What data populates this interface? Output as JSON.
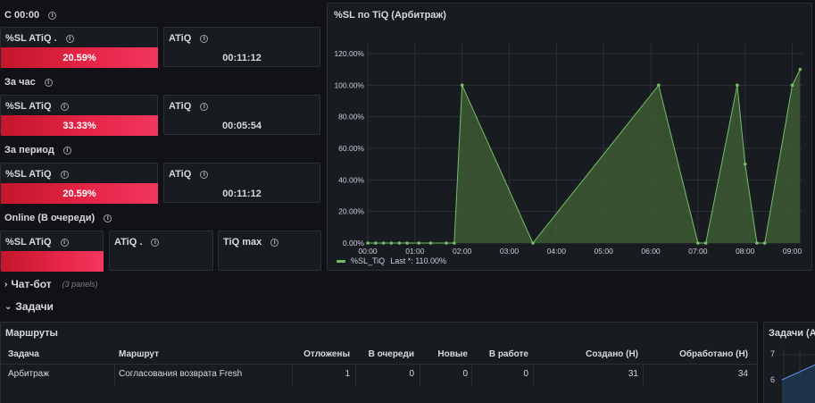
{
  "rows": [
    {
      "title": "С 00:00"
    },
    {
      "title": "За час"
    },
    {
      "title": "За период"
    },
    {
      "title": "Online (В очереди)"
    }
  ],
  "gauges": [
    {
      "title": "%SL ATiQ .",
      "value": "20.59%",
      "fraction": 0.2059
    },
    {
      "title": "%SL ATiQ",
      "value": "33.33%",
      "fraction": 0.3333
    },
    {
      "title": "%SL ATiQ",
      "value": "20.59%",
      "fraction": 0.2059
    },
    {
      "title": "%SL ATiQ",
      "value": "",
      "fraction": 1.0
    }
  ],
  "stats": [
    {
      "title": "ATiQ",
      "value": "00:11:12"
    },
    {
      "title": "ATiQ",
      "value": "00:05:54"
    },
    {
      "title": "ATiQ",
      "value": "00:11:12"
    },
    {
      "title": "ATiQ .",
      "value": ""
    },
    {
      "title": "TiQ max",
      "value": ""
    }
  ],
  "colors": {
    "bar": "#e8254a",
    "line": "#73bf69",
    "fill": "#3d5a34",
    "background": "#111217",
    "panel": "#181b1f"
  },
  "chart": {
    "title": "%SL по TiQ (Арбитраж)",
    "legend": {
      "name": "%SL_TiQ",
      "stat": "Last *: 110.00%"
    }
  },
  "chart_data": {
    "type": "area",
    "title": "%SL по TiQ (Арбитраж)",
    "xlabel": "",
    "ylabel": "",
    "ylim": [
      0,
      1.2
    ],
    "y_ticks": [
      "0.00%",
      "20.00%",
      "40.00%",
      "60.00%",
      "80.00%",
      "100.00%",
      "120.00%"
    ],
    "x_ticks": [
      "00:00",
      "01:00",
      "02:00",
      "03:00",
      "04:00",
      "05:00",
      "06:00",
      "07:00",
      "08:00",
      "09:00"
    ],
    "grid": true,
    "legend_position": "bottom-left",
    "series": [
      {
        "name": "%SL_TiQ",
        "x": [
          "00:00",
          "00:10",
          "00:20",
          "00:30",
          "00:40",
          "00:50",
          "01:05",
          "01:20",
          "01:40",
          "01:50",
          "02:00",
          "03:30",
          "06:10",
          "07:00",
          "07:10",
          "07:50",
          "08:00",
          "08:15",
          "08:25",
          "09:00",
          "09:10"
        ],
        "y": [
          0,
          0,
          0,
          0,
          0,
          0,
          0,
          0,
          0,
          0,
          1.0,
          0,
          1.0,
          0,
          0,
          1.0,
          0.5,
          0,
          0,
          1.0,
          1.1
        ]
      }
    ]
  },
  "sections": [
    {
      "chevron": "›",
      "title": "Чат-бот",
      "hint": "(3 panels)"
    },
    {
      "chevron": "⌄",
      "title": "Задачи"
    }
  ],
  "table": {
    "title": "Маршруты",
    "headers": [
      "Задача",
      "Маршрут",
      "Отложены",
      "В очереди",
      "Новые",
      "В работе",
      "Создано (Н)",
      "Обработано (Н)"
    ],
    "rows": [
      [
        "Арбитраж",
        "Согласования возврата Fresh",
        "1",
        "0",
        "0",
        "0",
        "31",
        "34"
      ]
    ]
  },
  "right_panel": {
    "title": "Задачи (Ар",
    "y_ticks": [
      "7",
      "6"
    ]
  }
}
